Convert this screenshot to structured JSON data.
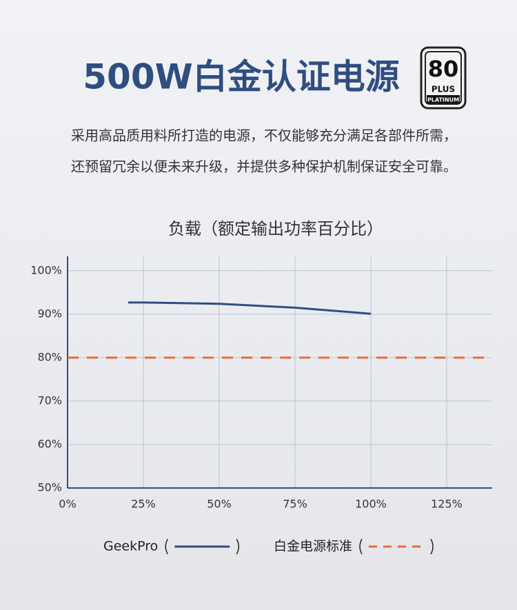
{
  "header": {
    "title": "500W白金认证电源",
    "badge": [
      "80",
      "PLUS",
      "PLATINUM"
    ],
    "description": [
      "采用高品质用料所打造的电源，不仅能够充分满足各部件所需，",
      "还预留冗余以便未来升级，并提供多种保护机制保证安全可靠。"
    ]
  },
  "chart_data": {
    "type": "line",
    "title": "负载（额定输出功率百分比）",
    "xlim": [
      0,
      140
    ],
    "ylim": [
      50,
      103.3
    ],
    "xticks": [
      {
        "value": 0,
        "label": "0%"
      },
      {
        "value": 25,
        "label": "25%"
      },
      {
        "value": 50,
        "label": "50%"
      },
      {
        "value": 75,
        "label": "75%"
      },
      {
        "value": 100,
        "label": "100%"
      },
      {
        "value": 125,
        "label": "125%"
      }
    ],
    "yticks": [
      {
        "value": 50,
        "label": "50%"
      },
      {
        "value": 60,
        "label": "60%"
      },
      {
        "value": 70,
        "label": "70%"
      },
      {
        "value": 80,
        "label": "80%"
      },
      {
        "value": 90,
        "label": "90%"
      },
      {
        "value": 100,
        "label": "100%"
      }
    ],
    "grid": true,
    "series": [
      {
        "name": "GeekPro",
        "color": "#2f4e80",
        "dashed": false,
        "x": [
          20,
          25,
          50,
          75,
          100
        ],
        "values": [
          92.7,
          92.7,
          92.4,
          91.5,
          90.1
        ]
      },
      {
        "name": "白金电源标准",
        "color": "#ea6a3a",
        "dashed": true,
        "x": [
          0,
          140
        ],
        "values": [
          80,
          80
        ]
      }
    ]
  }
}
